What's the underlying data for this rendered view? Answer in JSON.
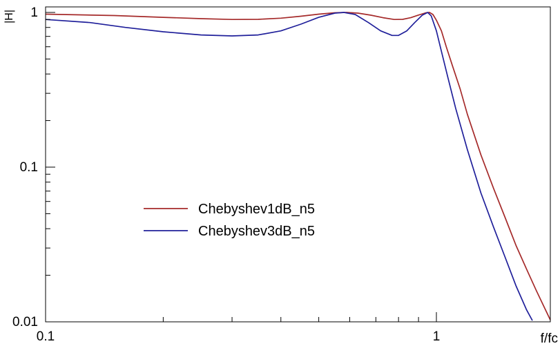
{
  "chart_data": {
    "type": "line",
    "title": "",
    "xlabel": "f/fc",
    "ylabel": "|H|",
    "xscale": "log",
    "yscale": "log",
    "xlim": [
      0.1,
      2.5
    ],
    "ylim": [
      0.01,
      1.05
    ],
    "grid": false,
    "legend_position": "center-left",
    "x_ticks": [
      {
        "v": 0.1,
        "label": "0.1"
      },
      {
        "v": 1,
        "label": "1"
      }
    ],
    "y_ticks": [
      {
        "v": 0.01,
        "label": "0.01"
      },
      {
        "v": 0.1,
        "label": "0.1"
      },
      {
        "v": 1,
        "label": "1"
      }
    ],
    "series": [
      {
        "name": "Chebyshev1dB_n5",
        "color": "#a52a2a",
        "points": [
          [
            0.1,
            0.975
          ],
          [
            0.15,
            0.955
          ],
          [
            0.2,
            0.93
          ],
          [
            0.25,
            0.912
          ],
          [
            0.3,
            0.9
          ],
          [
            0.35,
            0.902
          ],
          [
            0.4,
            0.918
          ],
          [
            0.45,
            0.945
          ],
          [
            0.5,
            0.975
          ],
          [
            0.55,
            0.995
          ],
          [
            0.59,
            1.0
          ],
          [
            0.63,
            0.99
          ],
          [
            0.68,
            0.96
          ],
          [
            0.73,
            0.925
          ],
          [
            0.78,
            0.9
          ],
          [
            0.82,
            0.902
          ],
          [
            0.86,
            0.925
          ],
          [
            0.9,
            0.962
          ],
          [
            0.94,
            0.995
          ],
          [
            0.96,
            1.0
          ],
          [
            0.98,
            0.97
          ],
          [
            1.0,
            0.89
          ],
          [
            1.03,
            0.76
          ],
          [
            1.06,
            0.6
          ],
          [
            1.1,
            0.45
          ],
          [
            1.15,
            0.32
          ],
          [
            1.2,
            0.22
          ],
          [
            1.3,
            0.12
          ],
          [
            1.4,
            0.073
          ],
          [
            1.5,
            0.047
          ],
          [
            1.6,
            0.031
          ],
          [
            1.7,
            0.022
          ],
          [
            1.8,
            0.016
          ],
          [
            1.9,
            0.012
          ],
          [
            1.96,
            0.0102
          ]
        ]
      },
      {
        "name": "Chebyshev3dB_n5",
        "color": "#1f1f9a",
        "points": [
          [
            0.1,
            0.9
          ],
          [
            0.13,
            0.86
          ],
          [
            0.16,
            0.8
          ],
          [
            0.2,
            0.75
          ],
          [
            0.25,
            0.715
          ],
          [
            0.3,
            0.705
          ],
          [
            0.35,
            0.715
          ],
          [
            0.4,
            0.76
          ],
          [
            0.45,
            0.84
          ],
          [
            0.5,
            0.93
          ],
          [
            0.55,
            0.99
          ],
          [
            0.58,
            1.0
          ],
          [
            0.62,
            0.97
          ],
          [
            0.67,
            0.86
          ],
          [
            0.72,
            0.76
          ],
          [
            0.77,
            0.71
          ],
          [
            0.8,
            0.71
          ],
          [
            0.84,
            0.76
          ],
          [
            0.88,
            0.86
          ],
          [
            0.92,
            0.96
          ],
          [
            0.95,
            1.0
          ],
          [
            0.97,
            0.95
          ],
          [
            1.0,
            0.76
          ],
          [
            1.03,
            0.56
          ],
          [
            1.07,
            0.38
          ],
          [
            1.12,
            0.24
          ],
          [
            1.2,
            0.13
          ],
          [
            1.3,
            0.068
          ],
          [
            1.4,
            0.041
          ],
          [
            1.5,
            0.026
          ],
          [
            1.6,
            0.017
          ],
          [
            1.7,
            0.012
          ],
          [
            1.76,
            0.0102
          ]
        ]
      }
    ]
  }
}
